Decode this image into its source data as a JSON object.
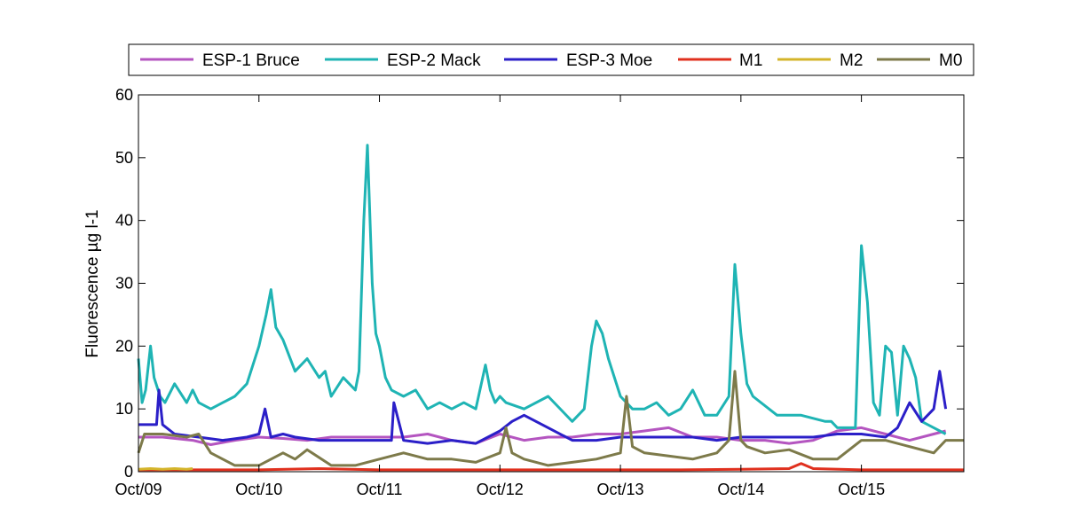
{
  "chart_data": {
    "type": "line",
    "ylabel": "Fluorescence µg l-1",
    "xlabel": "",
    "xlim": [
      0,
      6.85
    ],
    "ylim": [
      0,
      60
    ],
    "yticks": [
      0,
      10,
      20,
      30,
      40,
      50,
      60
    ],
    "xticks": [
      {
        "value": 0,
        "label": "Oct/09"
      },
      {
        "value": 1,
        "label": "Oct/10"
      },
      {
        "value": 2,
        "label": "Oct/11"
      },
      {
        "value": 3,
        "label": "Oct/12"
      },
      {
        "value": 4,
        "label": "Oct/13"
      },
      {
        "value": 5,
        "label": "Oct/14"
      },
      {
        "value": 6,
        "label": "Oct/15"
      }
    ],
    "legend_position": "top",
    "grid": false,
    "series": [
      {
        "name": "ESP-1 Bruce",
        "color": "#b455c0",
        "x": [
          0,
          0.2,
          0.45,
          0.6,
          0.8,
          1.0,
          1.2,
          1.4,
          1.6,
          1.8,
          2.0,
          2.2,
          2.4,
          2.6,
          2.8,
          3.0,
          3.2,
          3.4,
          3.6,
          3.8,
          4.0,
          4.2,
          4.4,
          4.6,
          4.8,
          5.0,
          5.2,
          5.4,
          5.6,
          5.8,
          6.0,
          6.2,
          6.4,
          6.6,
          6.7
        ],
        "values": [
          5.5,
          5.5,
          5,
          4.3,
          5,
          5.5,
          5.3,
          5,
          5.5,
          5.5,
          5.5,
          5.5,
          6,
          5,
          4.5,
          6,
          5,
          5.5,
          5.5,
          6,
          6,
          6.5,
          7,
          5.5,
          5.5,
          5,
          5,
          4.5,
          5,
          6.5,
          7,
          6,
          5,
          6,
          6.5
        ]
      },
      {
        "name": "ESP-2 Mack",
        "color": "#1fb4b4",
        "x": [
          0,
          0.03,
          0.06,
          0.1,
          0.13,
          0.18,
          0.22,
          0.3,
          0.4,
          0.45,
          0.5,
          0.6,
          0.7,
          0.8,
          0.9,
          1.0,
          1.06,
          1.1,
          1.14,
          1.2,
          1.3,
          1.4,
          1.5,
          1.55,
          1.6,
          1.7,
          1.8,
          1.83,
          1.87,
          1.9,
          1.94,
          1.97,
          2.0,
          2.05,
          2.1,
          2.2,
          2.3,
          2.4,
          2.5,
          2.6,
          2.7,
          2.8,
          2.88,
          2.92,
          2.96,
          3.0,
          3.05,
          3.2,
          3.4,
          3.6,
          3.7,
          3.76,
          3.8,
          3.85,
          3.9,
          4.0,
          4.1,
          4.2,
          4.3,
          4.4,
          4.5,
          4.6,
          4.7,
          4.8,
          4.9,
          4.95,
          5.0,
          5.05,
          5.1,
          5.3,
          5.5,
          5.7,
          5.75,
          5.8,
          5.85,
          5.9,
          5.95,
          6.0,
          6.05,
          6.1,
          6.15,
          6.2,
          6.25,
          6.3,
          6.35,
          6.4,
          6.45,
          6.5,
          6.6,
          6.7
        ],
        "values": [
          18,
          11,
          13,
          20,
          15,
          12,
          11,
          14,
          11,
          13,
          11,
          10,
          11,
          12,
          14,
          20,
          25,
          29,
          23,
          21,
          16,
          18,
          15,
          16,
          12,
          15,
          13,
          16,
          40,
          52,
          30,
          22,
          20,
          15,
          13,
          12,
          13,
          10,
          11,
          10,
          11,
          10,
          17,
          13,
          11,
          12,
          11,
          10,
          12,
          8,
          10,
          20,
          24,
          22,
          18,
          12,
          10,
          10,
          11,
          9,
          10,
          13,
          9,
          9,
          12,
          33,
          22,
          14,
          12,
          9,
          9,
          8,
          8,
          7,
          7,
          7,
          7,
          36,
          27,
          11,
          9,
          20,
          19,
          9,
          20,
          18,
          15,
          8,
          7,
          6
        ]
      },
      {
        "name": "ESP-3 Moe",
        "color": "#2b1fc8",
        "x": [
          0,
          0.1,
          0.15,
          0.17,
          0.2,
          0.3,
          0.5,
          0.7,
          0.9,
          1.0,
          1.05,
          1.1,
          1.2,
          1.3,
          1.5,
          1.7,
          1.9,
          2.1,
          2.12,
          2.2,
          2.4,
          2.6,
          2.8,
          3.0,
          3.1,
          3.2,
          3.4,
          3.6,
          3.8,
          4.0,
          4.2,
          4.4,
          4.6,
          4.8,
          5.0,
          5.2,
          5.4,
          5.6,
          5.8,
          6.0,
          6.2,
          6.3,
          6.4,
          6.5,
          6.6,
          6.65,
          6.7
        ],
        "values": [
          7.5,
          7.5,
          7.5,
          13,
          7.5,
          6,
          5.5,
          5,
          5.5,
          6,
          10,
          5.5,
          6,
          5.5,
          5,
          5,
          5,
          5,
          11,
          5,
          4.5,
          5,
          4.5,
          6.5,
          8,
          9,
          7,
          5,
          5,
          5.5,
          5.5,
          5.5,
          5.5,
          5,
          5.5,
          5.5,
          5.5,
          5.5,
          6,
          6,
          5.5,
          7,
          11,
          8,
          10,
          16,
          10
        ]
      },
      {
        "name": "M1",
        "color": "#e0301e",
        "x": [
          0,
          0.5,
          1.0,
          1.5,
          2.0,
          2.5,
          3.0,
          3.5,
          4.0,
          4.5,
          5.0,
          5.4,
          5.5,
          5.6,
          6.0,
          6.5,
          6.85
        ],
        "values": [
          0.3,
          0.3,
          0.3,
          0.5,
          0.3,
          0.3,
          0.3,
          0.3,
          0.3,
          0.3,
          0.4,
          0.5,
          1.3,
          0.5,
          0.3,
          0.3,
          0.3
        ]
      },
      {
        "name": "M2",
        "color": "#d4b42a",
        "x": [
          0,
          0.1,
          0.2,
          0.3,
          0.4,
          0.45
        ],
        "values": [
          0.4,
          0.5,
          0.4,
          0.5,
          0.4,
          0.5
        ]
      },
      {
        "name": "M0",
        "color": "#7d7a4a",
        "x": [
          0,
          0.05,
          0.2,
          0.4,
          0.5,
          0.6,
          0.8,
          1.0,
          1.2,
          1.3,
          1.4,
          1.6,
          1.8,
          2.0,
          2.2,
          2.4,
          2.6,
          2.8,
          3.0,
          3.05,
          3.1,
          3.2,
          3.4,
          3.6,
          3.8,
          4.0,
          4.05,
          4.1,
          4.2,
          4.4,
          4.6,
          4.8,
          4.9,
          4.95,
          5.0,
          5.05,
          5.2,
          5.4,
          5.6,
          5.8,
          6.0,
          6.2,
          6.4,
          6.6,
          6.7,
          6.85
        ],
        "values": [
          3,
          6,
          6,
          5.5,
          6,
          3,
          1,
          1,
          3,
          2,
          3.5,
          1,
          1,
          2,
          3,
          2,
          2,
          1.5,
          3,
          7,
          3,
          2,
          1,
          1.5,
          2,
          3,
          12,
          4,
          3,
          2.5,
          2,
          3,
          5,
          16,
          5,
          4,
          3,
          3.5,
          2,
          2,
          5,
          5,
          4,
          3,
          5,
          5
        ]
      }
    ]
  }
}
